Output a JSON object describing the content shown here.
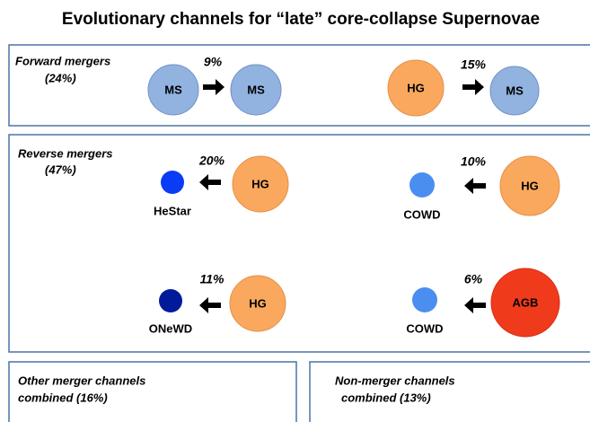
{
  "title": "Evolutionary channels for “late” core-collapse Supernovae",
  "panels": [
    {
      "label": "Forward mergers",
      "share": "(24%)"
    },
    {
      "label": "Reverse mergers",
      "share": "(47%)"
    },
    {
      "label": "Other merger channels",
      "share": "combined (16%)"
    },
    {
      "label": "Non-merger channels",
      "share": "combined (13%)"
    }
  ],
  "channels": [
    {
      "from": "MS",
      "to": "MS",
      "fraction": "9%"
    },
    {
      "from": "HG",
      "to": "MS",
      "fraction": "15%"
    },
    {
      "from": "HG",
      "to": "HeStar",
      "fraction": "20%"
    },
    {
      "from": "HG",
      "to": "COWD",
      "fraction": "10%"
    },
    {
      "from": "HG",
      "to": "ONeWD",
      "fraction": "11%"
    },
    {
      "from": "AGB",
      "to": "COWD",
      "fraction": "6%"
    }
  ]
}
